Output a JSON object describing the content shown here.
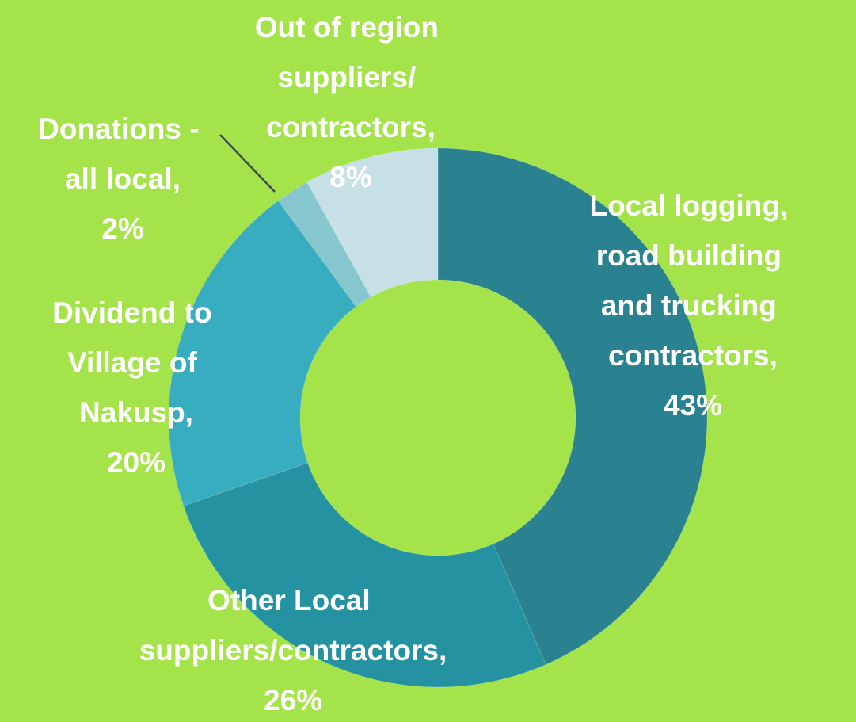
{
  "chart_data": {
    "type": "donut",
    "categories": [
      "Local logging, road building and trucking contractors,",
      "Other Local suppliers/contractors,",
      "Dividend to Village of Nakusp,",
      "Donations - all local,",
      "Out of region suppliers/ contractors,"
    ],
    "values": [
      43,
      26,
      20,
      2,
      8
    ],
    "value_labels": [
      "43%",
      "26%",
      "20%",
      "2%",
      "8%"
    ],
    "colors": [
      "#2a8190",
      "#2592a1",
      "#38adbf",
      "#86c6cf",
      "#c6e0e5"
    ]
  }
}
